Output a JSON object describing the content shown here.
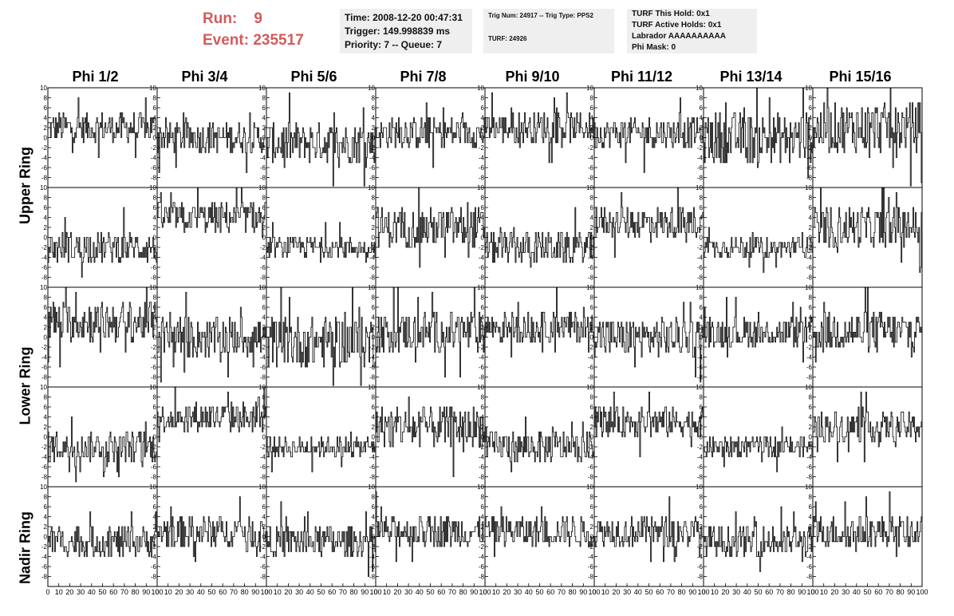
{
  "header": {
    "run_label": "Run:",
    "run_value": "9",
    "event_label": "Event:",
    "event_value": "235517"
  },
  "info_box_1": {
    "time": "Time: 2008-12-20 00:47:31",
    "trigger": "Trigger: 149.998839 ms",
    "priority": "Priority: 7 -- Queue: 7"
  },
  "info_box_2": {
    "trig_num": "Trig Num: 24917 -- Trig Type: PPS2",
    "turf": "TURF: 24926"
  },
  "info_box_3": {
    "this_hold": "TURF This Hold: 0x1",
    "active_holds": "TURF Active Holds: 0x1",
    "labrador": "Labrador AAAAAAAAAA",
    "phi_mask": "Phi Mask: 0"
  },
  "phi_titles": [
    "Phi 1/2",
    "Phi 3/4",
    "Phi 5/6",
    "Phi 7/8",
    "Phi 9/10",
    "Phi 11/12",
    "Phi 13/14",
    "Phi 15/16"
  ],
  "ring_labels": [
    "Upper Ring",
    "Lower Ring",
    "Nadir Ring"
  ],
  "y_ticks": [
    "10",
    "8",
    "6",
    "4",
    "2",
    "0",
    "-2",
    "-4",
    "-6",
    "-8"
  ],
  "x_ticks": [
    "0",
    "10",
    "20",
    "30",
    "40",
    "50",
    "60",
    "70",
    "80",
    "90",
    "100"
  ],
  "colors": {
    "run_text": "#d65a5a",
    "info_bg": "#efefef",
    "trace": "#000000"
  },
  "chart_data": {
    "type": "line",
    "layout": "8 columns (phi sectors) x 5 rows of waveform panels",
    "x_range": [
      0,
      100
    ],
    "y_range": [
      -10,
      10
    ],
    "grid": false,
    "panel_offsets": [
      [
        2,
        0,
        -1,
        1,
        2,
        1,
        0,
        2
      ],
      [
        -2,
        4,
        -2,
        2,
        -2,
        3,
        -2,
        2
      ],
      [
        3,
        0,
        -1,
        1,
        2,
        0,
        1,
        1
      ],
      [
        -2,
        4,
        -2,
        2,
        -2,
        3,
        -2,
        2
      ],
      [
        -1,
        1,
        -1,
        1,
        1,
        1,
        -1,
        1
      ]
    ],
    "panel_spread": [
      [
        3,
        3,
        4,
        3,
        3,
        3,
        5,
        5
      ],
      [
        3,
        3,
        2,
        4,
        3,
        3,
        2,
        4
      ],
      [
        4,
        4,
        5,
        4,
        3,
        4,
        3,
        4
      ],
      [
        3,
        3,
        2,
        4,
        3,
        3,
        2,
        3
      ],
      [
        3,
        3,
        3,
        3,
        3,
        3,
        3,
        3
      ]
    ]
  }
}
